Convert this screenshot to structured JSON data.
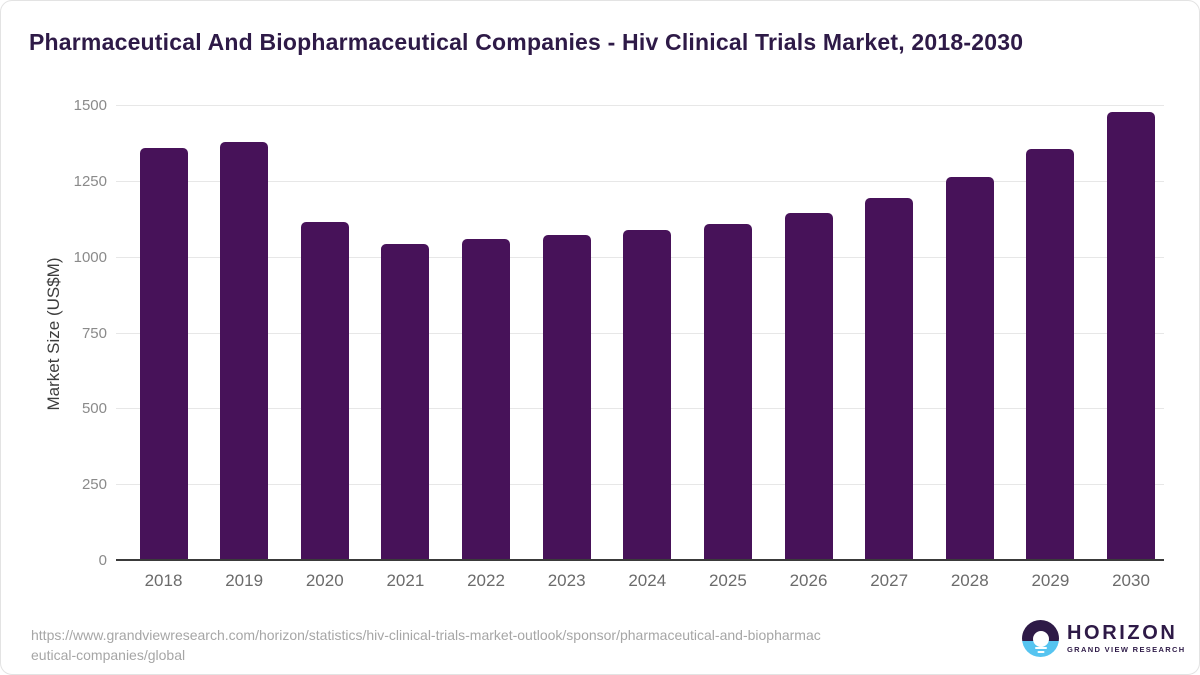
{
  "title": "Pharmaceutical And Biopharmaceutical Companies - Hiv Clinical Trials Market, 2018-2030",
  "chart_data": {
    "type": "bar",
    "categories": [
      "2018",
      "2019",
      "2020",
      "2021",
      "2022",
      "2023",
      "2024",
      "2025",
      "2026",
      "2027",
      "2028",
      "2029",
      "2030"
    ],
    "values": [
      1358,
      1377,
      1114,
      1042,
      1057,
      1073,
      1088,
      1107,
      1145,
      1193,
      1263,
      1355,
      1476
    ],
    "title": "Pharmaceutical And Biopharmaceutical Companies - Hiv Clinical Trials Market, 2018-2030",
    "xlabel": "",
    "ylabel": "Market Size (US$M)",
    "ylim": [
      0,
      1500
    ],
    "yticks": [
      0,
      250,
      500,
      750,
      1000,
      1250,
      1500
    ],
    "grid": true,
    "legend": "none",
    "bar_color": "#471259"
  },
  "footer": {
    "url_line1": "https://www.grandviewresearch.com/horizon/statistics/hiv-clinical-trials-market-outlook/sponsor/pharmaceutical-and-biopharmac",
    "url_line2": "eutical-companies/global",
    "logo": {
      "name": "HORIZON",
      "tagline": "GRAND VIEW RESEARCH"
    }
  },
  "colors": {
    "bar": "#471259",
    "title": "#2e1a47",
    "logo_blue": "#56c4f0",
    "gridline": "#e7e7e7",
    "axis_line": "#3a3a3a"
  }
}
